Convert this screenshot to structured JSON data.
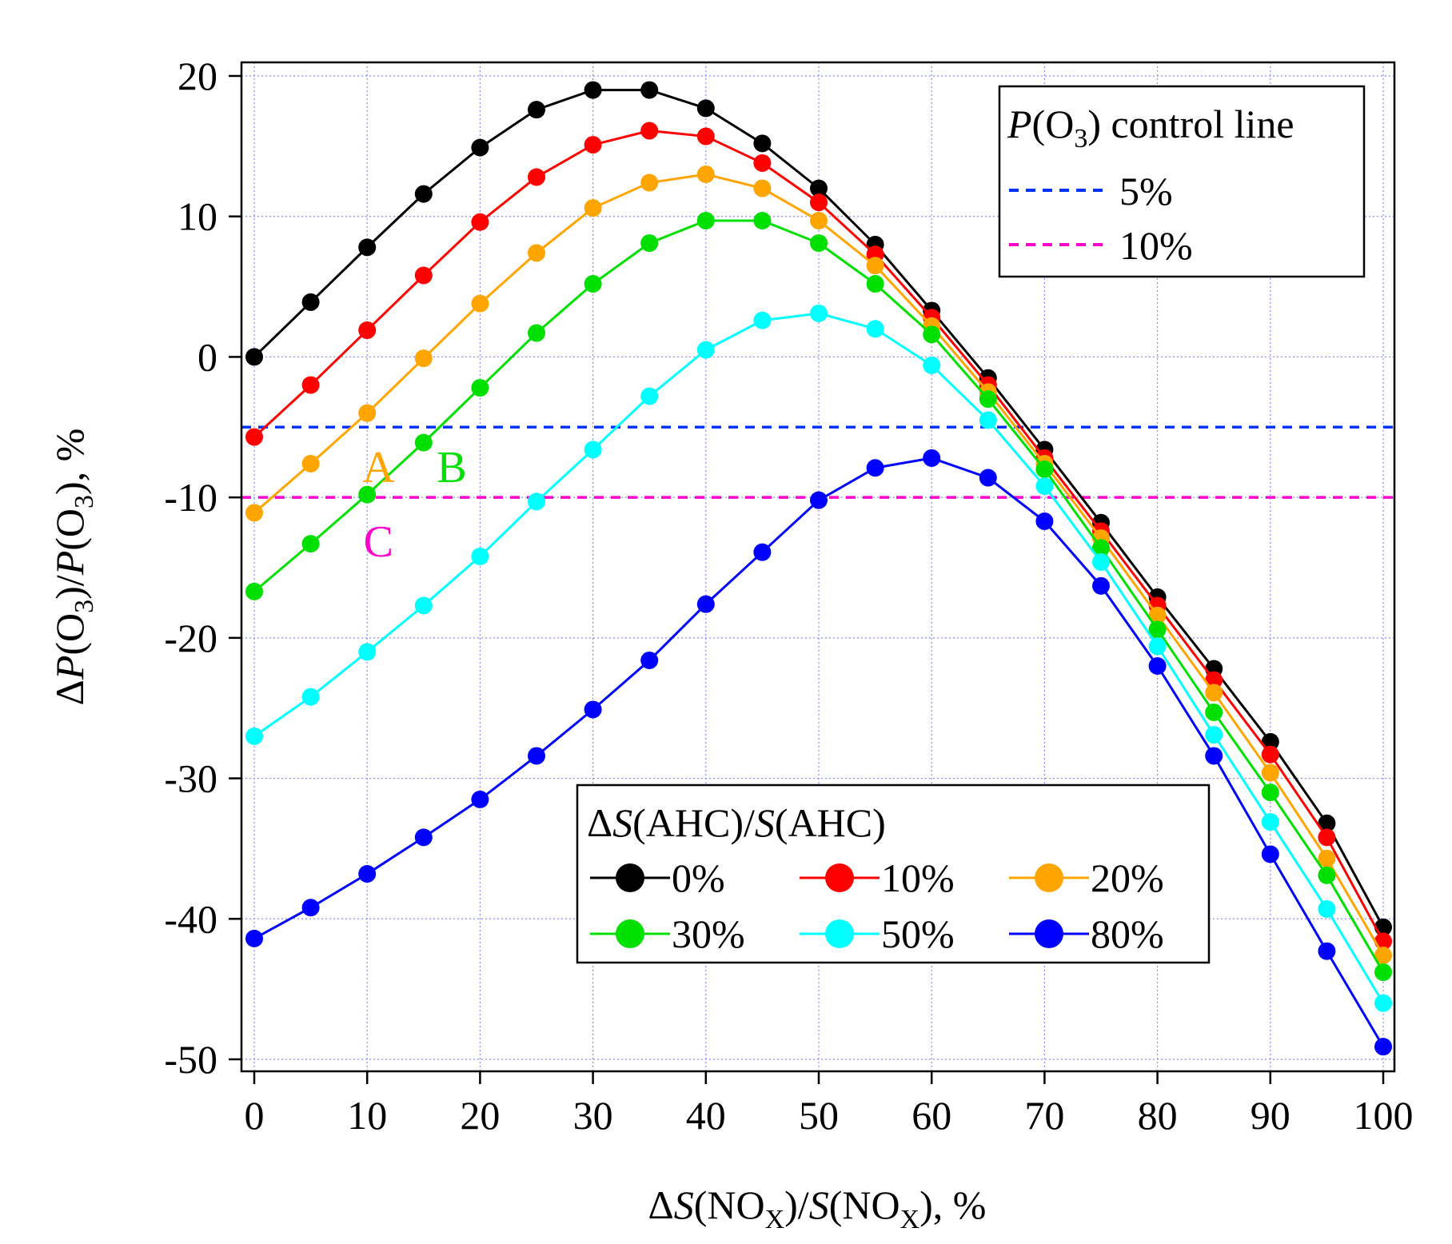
{
  "chart_data": {
    "type": "line",
    "xlabel": {
      "delta": "Δ",
      "s1": "S",
      "mid": "(NO",
      "sub": "X",
      "close": ")/",
      "s2": "S",
      "tail": "(NO",
      "sub2": "X",
      "end": "), %"
    },
    "ylabel": {
      "delta": "Δ",
      "p1": "P",
      "mid": "(O",
      "sub": "3",
      "close": ")/",
      "p2": "P",
      "tail": "(O",
      "sub2": "3",
      "end": "), %"
    },
    "xlim": [
      0,
      100
    ],
    "ylim": [
      -50,
      20
    ],
    "x_ticks": [
      0,
      10,
      20,
      30,
      40,
      50,
      60,
      70,
      80,
      90,
      100
    ],
    "y_ticks": [
      20,
      10,
      0,
      -10,
      -20,
      -30,
      -40,
      -50
    ],
    "x_tick_labels": [
      "0",
      "10",
      "20",
      "30",
      "40",
      "50",
      "60",
      "70",
      "80",
      "90",
      "100"
    ],
    "y_tick_labels": [
      "20",
      "10",
      "0",
      "-10",
      "-20",
      "-30",
      "-40",
      "-50"
    ],
    "grid": true,
    "x": [
      0,
      5,
      10,
      15,
      20,
      25,
      30,
      35,
      40,
      45,
      50,
      55,
      60,
      65,
      70,
      75,
      80,
      85,
      90,
      95,
      100
    ],
    "series": [
      {
        "name": "0%",
        "color": "#000000",
        "values": [
          0,
          3.9,
          7.8,
          11.6,
          14.9,
          17.6,
          19.0,
          19.0,
          17.7,
          15.2,
          12.0,
          8.0,
          3.3,
          -1.5,
          -6.6,
          -11.8,
          -17.1,
          -22.2,
          -27.4,
          -33.2,
          -40.6
        ]
      },
      {
        "name": "10%",
        "color": "#ff0000",
        "values": [
          -5.7,
          -2.0,
          1.9,
          5.8,
          9.6,
          12.8,
          15.1,
          16.1,
          15.7,
          13.8,
          11.0,
          7.3,
          2.8,
          -2.0,
          -7.2,
          -12.4,
          -17.7,
          -23.0,
          -28.3,
          -34.2,
          -41.6
        ]
      },
      {
        "name": "20%",
        "color": "#ffa500",
        "values": [
          -11.1,
          -7.6,
          -4.0,
          -0.1,
          3.8,
          7.4,
          10.6,
          12.4,
          13.0,
          12.0,
          9.7,
          6.5,
          2.2,
          -2.5,
          -7.6,
          -12.9,
          -18.4,
          -23.9,
          -29.6,
          -35.7,
          -42.6
        ]
      },
      {
        "name": "30%",
        "color": "#00e000",
        "values": [
          -16.7,
          -13.3,
          -9.8,
          -6.1,
          -2.2,
          1.7,
          5.2,
          8.1,
          9.7,
          9.7,
          8.1,
          5.2,
          1.6,
          -3.0,
          -8.0,
          -13.6,
          -19.4,
          -25.3,
          -31.0,
          -36.9,
          -43.8
        ]
      },
      {
        "name": "50%",
        "color": "#00ffff",
        "values": [
          -27.0,
          -24.2,
          -21.0,
          -17.7,
          -14.2,
          -10.3,
          -6.6,
          -2.8,
          0.5,
          2.6,
          3.1,
          2.0,
          -0.6,
          -4.5,
          -9.2,
          -14.6,
          -20.6,
          -26.9,
          -33.1,
          -39.3,
          -46.0
        ]
      },
      {
        "name": "80%",
        "color": "#0000ff",
        "values": [
          -41.4,
          -39.2,
          -36.8,
          -34.2,
          -31.5,
          -28.4,
          -25.1,
          -21.6,
          -17.6,
          -13.9,
          -10.2,
          -7.9,
          -7.2,
          -8.6,
          -11.7,
          -16.3,
          -22.0,
          -28.4,
          -35.4,
          -42.3,
          -49.1
        ]
      }
    ],
    "control_lines": [
      {
        "name": "5%",
        "y": -5,
        "color": "#0033ff"
      },
      {
        "name": "10%",
        "y": -10,
        "color": "#ff00cc"
      }
    ],
    "legend_top": {
      "title": {
        "p": "P",
        "mid": "(O",
        "sub": "3",
        "tail": ") control line"
      },
      "placement": "top-right"
    },
    "legend_bottom": {
      "title": {
        "delta": "Δ",
        "s1": "S",
        "mid": "(AHC)/",
        "s2": "S",
        "tail": "(AHC)"
      },
      "placement": "center-bottom"
    },
    "annotations": [
      {
        "text": "A",
        "color": "#ffa500",
        "x": 11,
        "y": -8.9
      },
      {
        "text": "B",
        "color": "#00e000",
        "x": 17.5,
        "y": -8.9
      },
      {
        "text": "C",
        "color": "#ff00cc",
        "x": 11,
        "y": -14.2
      }
    ]
  }
}
